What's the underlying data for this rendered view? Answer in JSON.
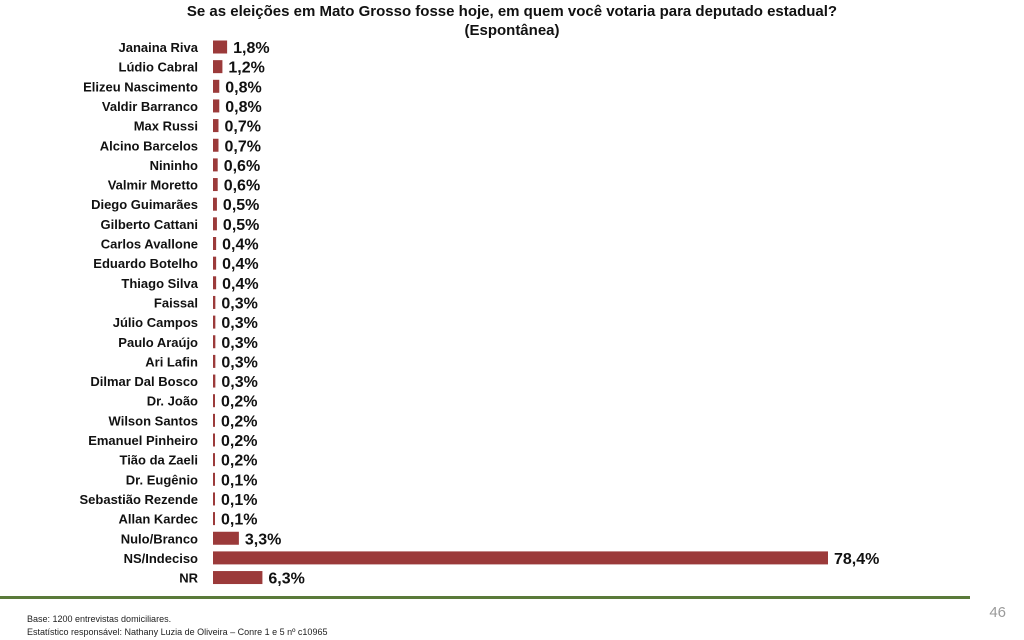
{
  "chart_data": {
    "type": "bar",
    "orientation": "horizontal",
    "title": "Se as eleições em Mato Grosso fosse hoje, em quem você votaria para deputado estadual?",
    "subtitle": "(Espontânea)",
    "categories": [
      "Janaina Riva",
      "Lúdio Cabral",
      "Elizeu Nascimento",
      "Valdir Barranco",
      "Max Russi",
      "Alcino Barcelos",
      "Nininho",
      "Valmir Moretto",
      "Diego Guimarães",
      "Gilberto Cattani",
      "Carlos Avallone",
      "Eduardo Botelho",
      "Thiago Silva",
      "Faissal",
      "Júlio Campos",
      "Paulo Araújo",
      "Ari Lafin",
      "Dilmar Dal Bosco",
      "Dr. João",
      "Wilson Santos",
      "Emanuel Pinheiro",
      "Tião da Zaeli",
      "Dr. Eugênio",
      "Sebastião Rezende",
      "Allan Kardec",
      "Nulo/Branco",
      "NS/Indeciso",
      "NR"
    ],
    "values": [
      1.8,
      1.2,
      0.8,
      0.8,
      0.7,
      0.7,
      0.6,
      0.6,
      0.5,
      0.5,
      0.4,
      0.4,
      0.4,
      0.3,
      0.3,
      0.3,
      0.3,
      0.3,
      0.2,
      0.2,
      0.2,
      0.2,
      0.1,
      0.1,
      0.1,
      3.3,
      78.4,
      6.3
    ],
    "value_labels": [
      "1,8%",
      "1,2%",
      "0,8%",
      "0,8%",
      "0,7%",
      "0,7%",
      "0,6%",
      "0,6%",
      "0,5%",
      "0,5%",
      "0,4%",
      "0,4%",
      "0,4%",
      "0,3%",
      "0,3%",
      "0,3%",
      "0,3%",
      "0,3%",
      "0,2%",
      "0,2%",
      "0,2%",
      "0,2%",
      "0,1%",
      "0,1%",
      "0,1%",
      "3,3%",
      "78,4%",
      "6,3%"
    ],
    "bar_color": "#9b3a3a",
    "grid": false
  },
  "footer": {
    "line1": "Base: 1200 entrevistas domiciliares.",
    "line2": "Estatístico responsável: Nathany Luzia de Oliveira – Conre 1 e 5 nº c10965"
  },
  "page_number": "46"
}
